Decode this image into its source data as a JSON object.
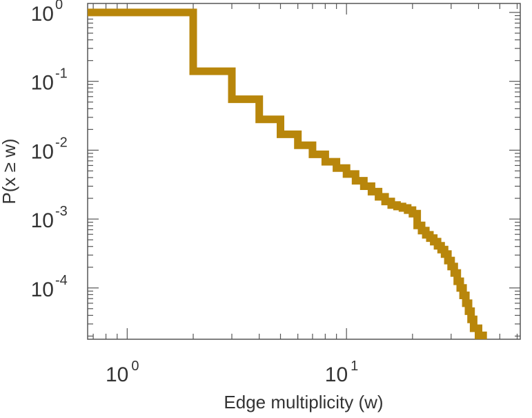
{
  "chart_data": {
    "type": "line",
    "step": true,
    "xlabel": "Edge multiplicity (w)",
    "ylabel": "P(x ≥ w)",
    "xscale": "log",
    "yscale": "log",
    "xlim": [
      0.66,
      62
    ],
    "ylim": [
      1.8e-05,
      1.35
    ],
    "grid": false,
    "colors": {
      "series": "#b8860b",
      "axis": "#555555",
      "text": "#333333"
    },
    "x_ticks": [
      {
        "base": "10",
        "exp": "0",
        "value": 1
      },
      {
        "base": "10",
        "exp": "1",
        "value": 10
      }
    ],
    "y_ticks": [
      {
        "base": "10",
        "exp": "0",
        "value": 1
      },
      {
        "base": "10",
        "exp": "-1",
        "value": 0.1
      },
      {
        "base": "10",
        "exp": "-2",
        "value": 0.01
      },
      {
        "base": "10",
        "exp": "-3",
        "value": 0.001
      },
      {
        "base": "10",
        "exp": "-4",
        "value": 0.0001
      }
    ],
    "series": [
      {
        "x": [
          1,
          2,
          3,
          4,
          5,
          6,
          7,
          8,
          9,
          10,
          11,
          12,
          13,
          14,
          15,
          16,
          17,
          18,
          19,
          20,
          21,
          22,
          23,
          24,
          25,
          26,
          27,
          28,
          29,
          30,
          31,
          32,
          33,
          34,
          35,
          36,
          37,
          38,
          39,
          40,
          41,
          42
        ],
        "y": [
          1.0,
          0.14,
          0.055,
          0.028,
          0.017,
          0.0118,
          0.0087,
          0.0068,
          0.0055,
          0.0045,
          0.0036,
          0.003,
          0.0025,
          0.0021,
          0.0018,
          0.0016,
          0.00152,
          0.00145,
          0.00135,
          0.0012,
          0.00081,
          0.00068,
          0.00059,
          0.00053,
          0.00047,
          0.00041,
          0.00036,
          0.00031,
          0.00025,
          0.000205,
          0.000165,
          0.000125,
          0.0001,
          7.8e-05,
          6e-05,
          4.6e-05,
          3.5e-05,
          2.6e-05,
          2.6e-05,
          2.05e-05,
          2.05e-05,
          2e-05
        ]
      }
    ]
  }
}
